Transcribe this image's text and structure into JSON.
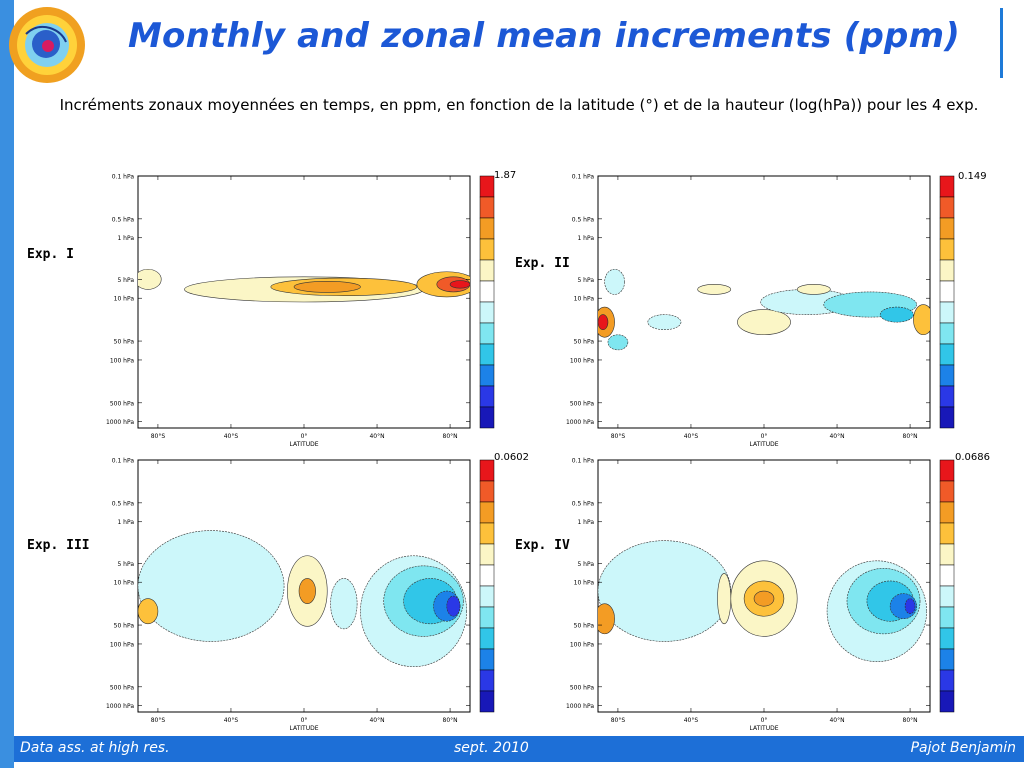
{
  "title": "Monthly and zonal mean increments (ppm)",
  "caption": "Incréments zonaux moyennées en temps, en ppm, en fonction de la latitude (°) et de la hauteur (log(hPa)) pour les 4 exp.",
  "panels": [
    {
      "label": "Exp. I",
      "cb_max": "1.87"
    },
    {
      "label": "Exp. II",
      "cb_max": "0.149"
    },
    {
      "label": "Exp. III",
      "cb_max": "0.0602"
    },
    {
      "label": "Exp. IV",
      "cb_max": "0.0686"
    }
  ],
  "axes": {
    "y_ticks": [
      "0.1 hPa",
      "0.5 hPa",
      "1 hPa",
      "5 hPa",
      "10 hPa",
      "50 hPa",
      "100 hPa",
      "500 hPa",
      "1000 hPa"
    ],
    "x_ticks": [
      "80°S",
      "40°S",
      "0°",
      "40°N",
      "80°N"
    ],
    "x_label": "LATITUDE"
  },
  "colors": {
    "title": "#1c58d6",
    "bars": "#1d6fd7",
    "colorbar": [
      "#e8161b",
      "#f05a28",
      "#f39c24",
      "#fdc13b",
      "#fbf6c6",
      "#ffffff",
      "#ccf7fa",
      "#7fe6f0",
      "#31c6e8",
      "#1c82e8",
      "#2a38e6",
      "#1818b8"
    ]
  },
  "footer": {
    "left": "Data ass. at high res.",
    "center": "sept. 2010",
    "right": "Pajot Benjamin"
  }
}
